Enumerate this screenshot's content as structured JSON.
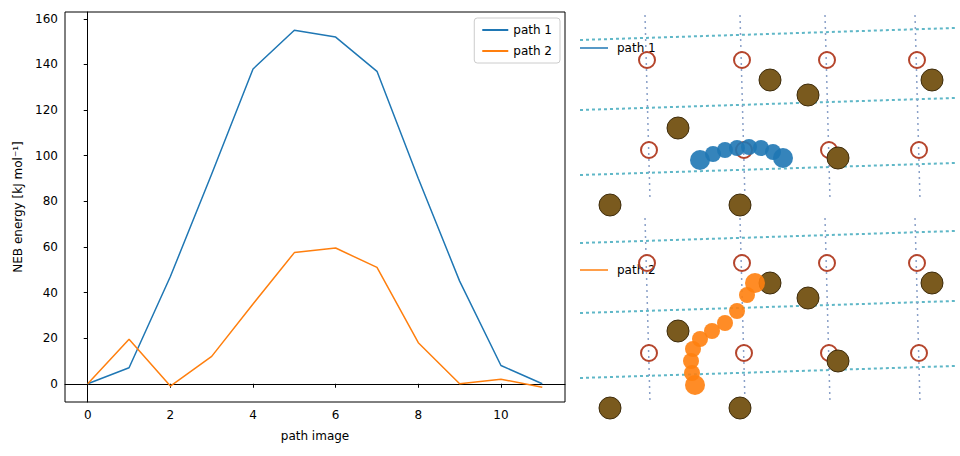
{
  "chart_data": {
    "type": "line",
    "x_label": "path image",
    "y_label": "NEB energy [kJ mol⁻¹]",
    "x": [
      0,
      1,
      2,
      3,
      4,
      5,
      6,
      7,
      8,
      9,
      10,
      11
    ],
    "series": [
      {
        "name": "path 1",
        "color": "#1f77b4",
        "values": [
          0,
          7,
          47,
          92,
          138,
          155,
          152,
          137,
          90,
          45,
          8,
          0
        ]
      },
      {
        "name": "path 2",
        "color": "#ff7f0e",
        "values": [
          0,
          19.5,
          -1,
          12,
          35,
          57.5,
          59.5,
          51,
          18,
          0,
          2,
          -1.5
        ]
      }
    ],
    "xlim": [
      -0.55,
      11.55
    ],
    "xticks": [
      0,
      2,
      4,
      6,
      8,
      10
    ],
    "ylim": [
      -8,
      163
    ],
    "yticks": [
      0,
      20,
      40,
      60,
      80,
      100,
      120,
      140,
      160
    ],
    "grid": false,
    "legend": "upper right"
  }
}
